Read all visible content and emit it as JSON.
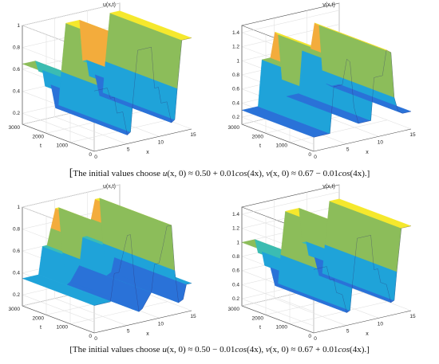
{
  "chart_data": [
    {
      "type": "surface3d",
      "title": "u(x,t)",
      "xlabel": "x",
      "ylabel": "t",
      "xlim": [
        0,
        15
      ],
      "ylim": [
        0,
        3000
      ],
      "zlim": [
        0.1,
        1.0
      ],
      "xticks": [
        "0",
        "5",
        "10",
        "15"
      ],
      "yticks": [
        "0",
        "1000",
        "2000",
        "3000"
      ],
      "zticks": [
        "0.2",
        "0.4",
        "0.6",
        "0.8",
        "1"
      ],
      "profile_x": [
        0,
        2,
        2.5,
        3.1,
        3.5,
        4.4,
        5.1,
        5.6,
        6.0,
        6.7,
        7.4,
        8.8,
        9.3,
        9.9,
        10.3,
        11.2,
        11.9,
        12.4,
        12.8,
        13.5,
        14.2,
        15
      ],
      "profile_z": [
        0.65,
        0.65,
        0.55,
        0.55,
        0.4,
        0.4,
        0.18,
        0.2,
        0.5,
        0.93,
        0.93,
        0.93,
        0.55,
        0.55,
        0.4,
        0.4,
        0.2,
        0.22,
        0.5,
        0.93,
        0.93,
        0.93
      ]
    },
    {
      "type": "surface3d",
      "title": "v(x,t)",
      "xlabel": "x",
      "ylabel": "t",
      "xlim": [
        0,
        15
      ],
      "ylim": [
        0,
        3000
      ],
      "zlim": [
        0.1,
        1.5
      ],
      "xticks": [
        "0",
        "5",
        "10",
        "15"
      ],
      "yticks": [
        "0",
        "1000",
        "2000",
        "3000"
      ],
      "zticks": [
        "0.2",
        "0.4",
        "0.6",
        "0.8",
        "1",
        "1.2",
        "1.4"
      ],
      "profile_x": [
        0,
        2.5,
        3.1,
        3.8,
        4.4,
        5.1,
        5.6,
        6.2,
        6.9,
        7.4,
        8.8,
        9.3,
        10.0,
        10.6,
        11.2,
        11.9,
        12.4,
        13.0,
        13.7,
        14.2,
        15
      ],
      "profile_z": [
        0.3,
        0.3,
        0.95,
        0.95,
        0.95,
        1.3,
        1.25,
        0.6,
        0.35,
        0.35,
        0.35,
        0.95,
        0.95,
        0.95,
        1.3,
        1.25,
        0.6,
        0.4,
        0.35,
        0.35,
        0.35
      ]
    },
    {
      "type": "surface3d",
      "title": "u(x,t)",
      "xlabel": "x",
      "ylabel": "t",
      "xlim": [
        0,
        15
      ],
      "ylim": [
        0,
        3000
      ],
      "zlim": [
        0.1,
        1.0
      ],
      "xticks": [
        "0",
        "5",
        "10",
        "15"
      ],
      "yticks": [
        "0",
        "1000",
        "2000",
        "3000"
      ],
      "zticks": [
        "0.2",
        "0.4",
        "0.6",
        "0.8",
        "1"
      ],
      "profile_x": [
        0,
        2.5,
        3.1,
        3.8,
        4.4,
        5.1,
        5.6,
        6.2,
        6.9,
        7.4,
        8.8,
        9.3,
        10.0,
        10.6,
        11.2,
        11.9,
        12.4,
        13.0,
        13.7,
        14.2,
        15
      ],
      "profile_z": [
        0.35,
        0.35,
        0.6,
        0.6,
        0.75,
        0.92,
        0.92,
        0.5,
        0.2,
        0.22,
        0.35,
        0.6,
        0.6,
        0.75,
        0.92,
        0.92,
        0.5,
        0.2,
        0.22,
        0.35,
        0.35
      ]
    },
    {
      "type": "surface3d",
      "title": "v(x,t)",
      "xlabel": "x",
      "ylabel": "t",
      "xlim": [
        0,
        15
      ],
      "ylim": [
        0,
        3000
      ],
      "zlim": [
        0.1,
        1.5
      ],
      "xticks": [
        "0",
        "5",
        "10",
        "15"
      ],
      "yticks": [
        "0",
        "1000",
        "2000",
        "3000"
      ],
      "zticks": [
        "0.2",
        "0.4",
        "0.6",
        "0.8",
        "1",
        "1.2",
        "1.4"
      ],
      "profile_x": [
        0,
        2,
        2.5,
        3.1,
        3.5,
        4.4,
        5.1,
        5.6,
        6.0,
        6.7,
        7.4,
        8.8,
        9.3,
        9.9,
        10.3,
        11.2,
        11.9,
        12.4,
        12.8,
        13.5,
        14.2,
        15
      ],
      "profile_z": [
        1.0,
        1.0,
        0.8,
        0.8,
        0.6,
        0.55,
        0.28,
        0.3,
        0.7,
        1.3,
        1.3,
        1.3,
        0.8,
        0.8,
        0.6,
        0.55,
        0.28,
        0.3,
        0.7,
        1.3,
        1.3,
        1.3
      ]
    }
  ],
  "captions": [
    {
      "prefix": "The initial values choose ",
      "u_lhs": "u",
      "u_args": "(x, 0) ≈ 0.50 + 0.01",
      "u_fn": "cos",
      "u_end": "(4x), ",
      "v_lhs": "v",
      "v_args": "(x, 0) ≈ 0.67 − 0.01",
      "v_fn": "cos",
      "v_end": "(4x).",
      "suffix": "]"
    },
    {
      "prefix": "The initial values choose ",
      "u_lhs": "u",
      "u_args": "(x, 0) ≈ 0.50 − 0.01",
      "u_fn": "cos",
      "u_end": "(4x), ",
      "v_lhs": "v",
      "v_args": "(x, 0) ≈ 0.67 + 0.01",
      "v_fn": "cos",
      "v_end": "(4x).",
      "suffix": "]"
    }
  ],
  "colors": {
    "deep": "#3a3691",
    "blue": "#2a72d8",
    "cyan": "#1fa3d9",
    "teal": "#3bbcb2",
    "green": "#8cbd5a",
    "orange": "#f3ac3c",
    "yellow": "#f5e82c",
    "grid": "#e2e2e2",
    "axis": "#4a4a4a"
  }
}
